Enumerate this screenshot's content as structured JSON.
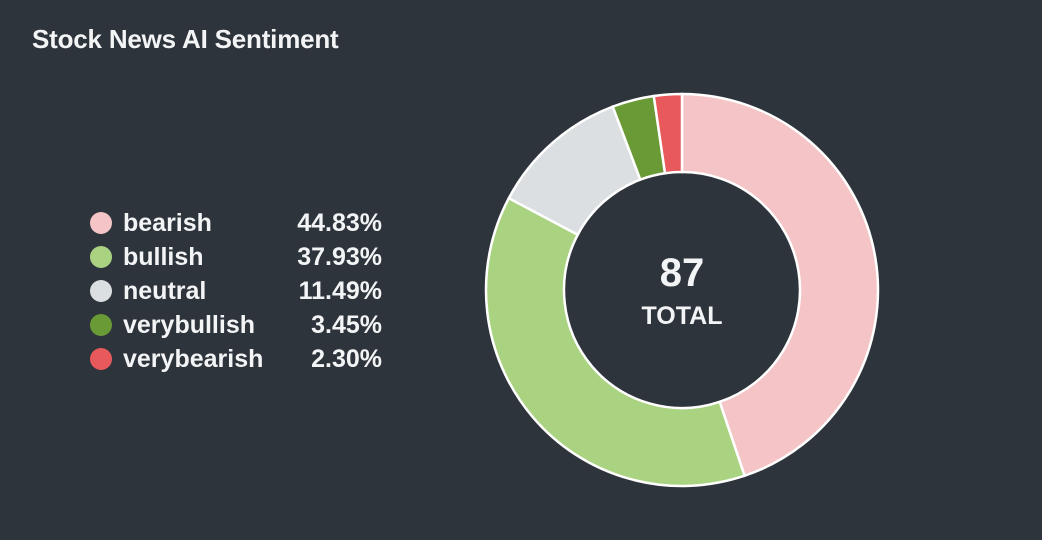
{
  "title": "Stock News AI Sentiment",
  "center": {
    "total": "87",
    "label": "TOTAL"
  },
  "legend": [
    {
      "label": "bearish",
      "value": "44.83%"
    },
    {
      "label": "bullish",
      "value": "37.93%"
    },
    {
      "label": "neutral",
      "value": "11.49%"
    },
    {
      "label": "verybullish",
      "value": "3.45%"
    },
    {
      "label": "verybearish",
      "value": "2.30%"
    }
  ],
  "colors": {
    "background": "#2e343b",
    "bearish": "#f5c4c6",
    "bullish": "#a9d281",
    "neutral": "#dcdfe1",
    "verybullish": "#6a9a36",
    "verybearish": "#e8595b",
    "slice_border": "#ffffff"
  },
  "chart_data": {
    "type": "pie",
    "title": "Stock News AI Sentiment",
    "donut": true,
    "total": 87,
    "legend_position": "left",
    "categories": [
      "bearish",
      "bullish",
      "neutral",
      "verybullish",
      "verybearish"
    ],
    "values": [
      39,
      33,
      10,
      3,
      2
    ],
    "percentages": [
      44.83,
      37.93,
      11.49,
      3.45,
      2.3
    ]
  }
}
